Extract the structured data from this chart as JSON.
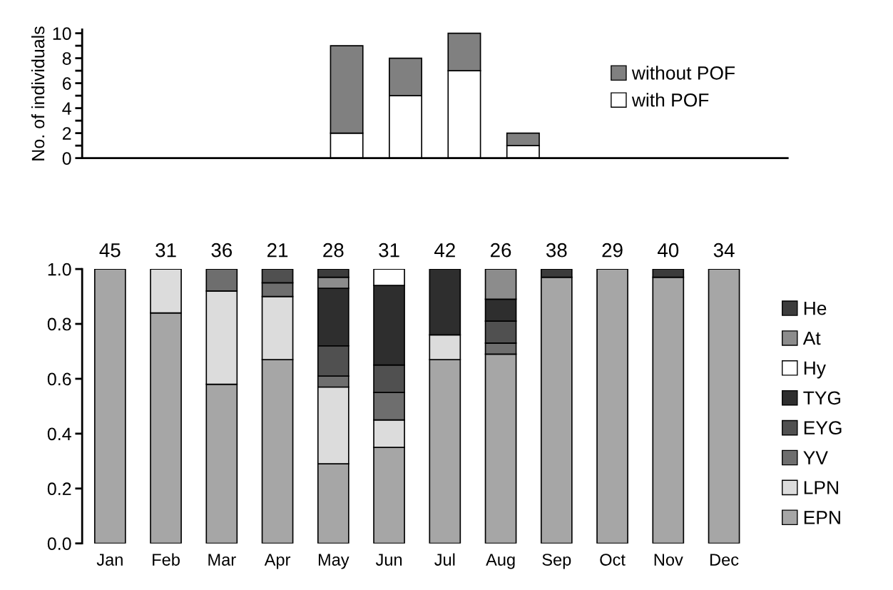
{
  "chart_data": [
    {
      "type": "bar",
      "stacked": true,
      "ylabel": "No. of individuals",
      "categories": [
        null,
        null,
        null,
        null,
        null,
        null,
        null,
        null,
        null,
        null,
        null,
        null
      ],
      "series": [
        {
          "name": "with POF",
          "color": "#ffffff",
          "values": [
            null,
            null,
            null,
            null,
            2,
            5,
            7,
            1,
            null,
            null,
            null,
            null
          ]
        },
        {
          "name": "without POF",
          "color": "#808080",
          "values": [
            null,
            null,
            null,
            null,
            7,
            3,
            3,
            1,
            null,
            null,
            null,
            null
          ]
        }
      ],
      "ylim": [
        0,
        10.3
      ],
      "yticks": [
        0,
        {
          "value": 1,
          "label": null
        },
        2,
        {
          "value": 3,
          "label": null
        },
        4,
        {
          "value": 5,
          "label": null
        },
        6,
        {
          "value": 7,
          "label": null
        },
        8,
        {
          "value": 9,
          "label": null
        },
        10
      ],
      "tick_labels": "y",
      "legend": "top right"
    },
    {
      "type": "bar",
      "stacked": true,
      "categories": [
        "Jan",
        "Feb",
        "Mar",
        "Apr",
        "May",
        "Jun",
        "Jul",
        "Aug",
        "Sep",
        "Oct",
        "Nov",
        "Dec"
      ],
      "series": [
        {
          "name": "EPN",
          "color": "#a6a6a6",
          "values": [
            1.0,
            0.84,
            0.58,
            0.67,
            0.29,
            0.35,
            0.67,
            0.69,
            0.97,
            1.0,
            0.97,
            1.0
          ]
        },
        {
          "name": "LPN",
          "color": "#dcdcdc",
          "values": [
            null,
            0.16,
            0.34,
            0.23,
            0.28,
            0.1,
            0.09,
            null,
            null,
            null,
            null,
            null
          ]
        },
        {
          "name": "YV",
          "color": "#6e6e6e",
          "values": [
            null,
            null,
            0.08,
            0.05,
            0.04,
            0.1,
            null,
            0.04,
            null,
            null,
            null,
            null
          ]
        },
        {
          "name": "EYG",
          "color": "#505050",
          "values": [
            null,
            null,
            null,
            0.05,
            0.11,
            0.1,
            null,
            0.08,
            null,
            null,
            null,
            null
          ]
        },
        {
          "name": "TYG",
          "color": "#2e2e2e",
          "values": [
            null,
            null,
            null,
            null,
            0.21,
            0.29,
            0.24,
            0.08,
            null,
            null,
            null,
            null
          ]
        },
        {
          "name": "Hy",
          "color": "#ffffff",
          "values": [
            null,
            null,
            null,
            null,
            null,
            0.06,
            null,
            null,
            null,
            null,
            null,
            null
          ]
        },
        {
          "name": "At",
          "color": "#8c8c8c",
          "values": [
            null,
            null,
            null,
            null,
            0.04,
            null,
            null,
            0.11,
            null,
            null,
            null,
            null
          ]
        },
        {
          "name": "He",
          "color": "#3c3c3c",
          "values": [
            null,
            null,
            null,
            null,
            0.03,
            null,
            null,
            null,
            0.03,
            null,
            0.03,
            null
          ]
        }
      ],
      "ylim": [
        0,
        1.0
      ],
      "yticks": [
        {
          "value": 0,
          "label": "0.0"
        },
        0.2,
        0.4,
        0.6,
        0.8,
        {
          "value": 1,
          "label": "1.0"
        }
      ],
      "legend": "right",
      "annotations": [
        {
          "text": "45",
          "x": "Jan",
          "y": 1.0
        },
        {
          "text": "31",
          "x": "Feb",
          "y": 1.0
        },
        {
          "text": "36",
          "x": "Mar",
          "y": 1.0
        },
        {
          "text": "21",
          "x": "Apr",
          "y": 1.0
        },
        {
          "text": "28",
          "x": "May",
          "y": 1.0
        },
        {
          "text": "31",
          "x": "Jun",
          "y": 1.0
        },
        {
          "text": "42",
          "x": "Jul",
          "y": 1.0
        },
        {
          "text": "26",
          "x": "Aug",
          "y": 1.0
        },
        {
          "text": "38",
          "x": "Sep",
          "y": 1.0
        },
        {
          "text": "29",
          "x": "Oct",
          "y": 1.0
        },
        {
          "text": "40",
          "x": "Nov",
          "y": 1.0
        },
        {
          "text": "34",
          "x": "Dec",
          "y": 1.0
        }
      ]
    }
  ]
}
